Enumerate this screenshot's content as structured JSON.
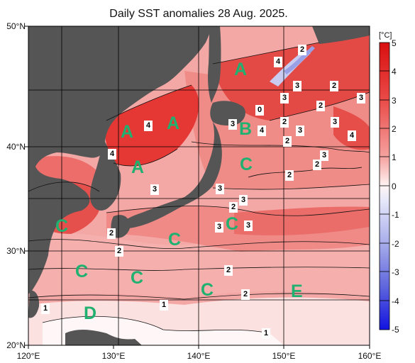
{
  "title": "Daily SST anomalies 28 Aug. 2025.",
  "unit": "[°C]",
  "lat_labels": [
    "50°N",
    "40°N",
    "30°N",
    "20°N"
  ],
  "lon_labels": [
    "120°E",
    "130°E",
    "140°E",
    "150°E",
    "160°E"
  ],
  "colorbar_ticks": [
    "5",
    "4",
    "3",
    "2",
    "1",
    "0",
    "-1",
    "-2",
    "-3",
    "-4",
    "-5"
  ],
  "region_labels": [
    "A",
    "A",
    "A",
    "A",
    "B",
    "C",
    "C",
    "C",
    "C",
    "C",
    "C",
    "C",
    "D",
    "E"
  ],
  "value_labels": [
    "2",
    "4",
    "3",
    "2",
    "3",
    "3",
    "0",
    "3",
    "3",
    "2",
    "4",
    "2",
    "3",
    "2",
    "4",
    "3",
    "4",
    "4",
    "3",
    "2",
    "2",
    "3",
    "3",
    "2",
    "3",
    "3",
    "2",
    "2",
    "2",
    "2",
    "1",
    "1",
    "1"
  ],
  "colors": {
    "land": "#555555",
    "strong_warm": "#e23030",
    "warm": "#f07a78",
    "mild_warm": "#f8b6b4",
    "weak_warm": "#fde6e6",
    "cold": "#3030d0",
    "region_label": "#20b070"
  }
}
